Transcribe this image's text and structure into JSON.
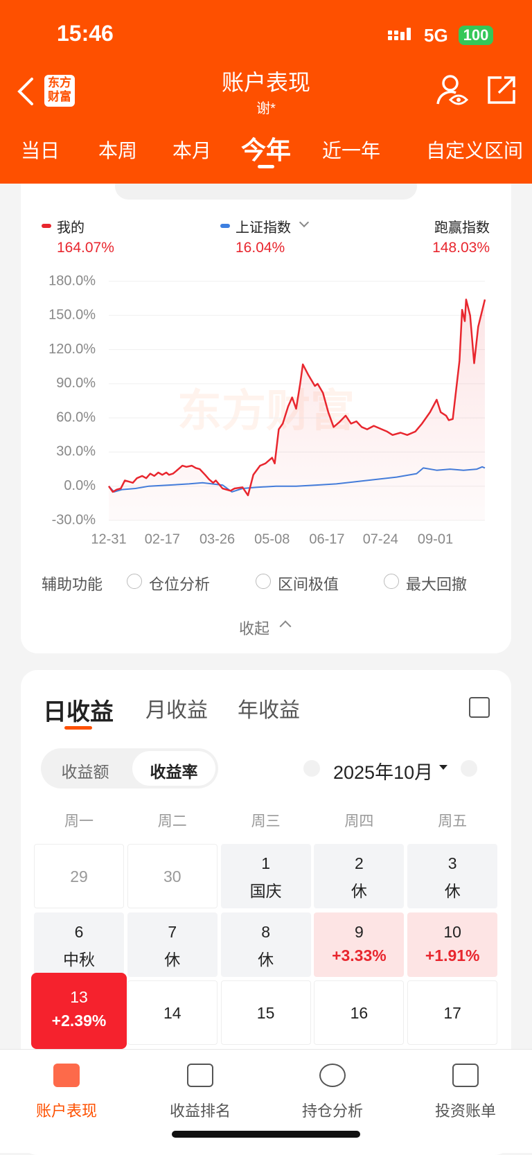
{
  "status_bar": {
    "time": "15:46",
    "network": "5G",
    "battery": "100"
  },
  "header": {
    "logo": [
      "东方",
      "财富"
    ],
    "title": "账户表现",
    "subtitle": "谢*"
  },
  "period_tabs": {
    "items": [
      "当日",
      "本周",
      "本月",
      "今年",
      "近一年",
      "自定义区间"
    ],
    "selected": 3
  },
  "chart_data": {
    "type": "line",
    "watermark": "东方财富",
    "series": [
      {
        "name": "我的",
        "color": "#e8262e",
        "total_label": "164.07%",
        "x": [
          0,
          3,
          6,
          9,
          12,
          15,
          18,
          21,
          25,
          28,
          31,
          34,
          37,
          40,
          43,
          45,
          48,
          52,
          55,
          58,
          62,
          65,
          68,
          72,
          75,
          78,
          80,
          85,
          91,
          94,
          100,
          104,
          108,
          113,
          117,
          122,
          124,
          127,
          130,
          134,
          137,
          140,
          143,
          145,
          149,
          154,
          156,
          160,
          164,
          168,
          172,
          177,
          181,
          185,
          189,
          193,
          198,
          204,
          208,
          212,
          218,
          223,
          229,
          234,
          240,
          245,
          248,
          252,
          254,
          257,
          262,
          264,
          266,
          267,
          270,
          273,
          276,
          281
        ],
        "values": [
          0,
          -5,
          -3,
          -2,
          5,
          4,
          3,
          7,
          9,
          7,
          11,
          9,
          12,
          10,
          12,
          10,
          11,
          15,
          18,
          17,
          18,
          16,
          15,
          10,
          6,
          3,
          5,
          -2,
          -4,
          -2,
          -1,
          -8,
          10,
          18,
          20,
          25,
          20,
          50,
          55,
          70,
          78,
          68,
          90,
          107,
          98,
          88,
          90,
          82,
          65,
          52,
          56,
          62,
          55,
          57,
          52,
          50,
          53,
          50,
          48,
          45,
          47,
          45,
          48,
          55,
          65,
          76,
          65,
          62,
          58,
          59,
          110,
          155,
          145,
          164,
          150,
          108,
          140,
          164
        ]
      },
      {
        "name": "上证指数",
        "color": "#3d7fe0",
        "total_label": "16.04%",
        "x": [
          0,
          4,
          10,
          20,
          30,
          45,
          60,
          70,
          85,
          92,
          100,
          110,
          125,
          140,
          155,
          170,
          185,
          200,
          215,
          230,
          235,
          245,
          255,
          265,
          275,
          279,
          281
        ],
        "values": [
          0,
          -5,
          -3,
          -2,
          0,
          1,
          2,
          3,
          1,
          -5,
          -2,
          -1,
          0,
          0,
          1,
          2,
          4,
          6,
          8,
          11,
          16,
          14,
          15,
          14,
          15,
          17,
          16
        ]
      }
    ],
    "excess": {
      "label": "跑赢指数",
      "value_label": "148.03%"
    },
    "xlim": [
      0,
      281
    ],
    "xticks": [
      {
        "value": 0,
        "label": "12-31"
      },
      {
        "value": 40,
        "label": "02-17"
      },
      {
        "value": 81,
        "label": "03-26"
      },
      {
        "value": 122,
        "label": "05-08"
      },
      {
        "value": 163,
        "label": "06-17"
      },
      {
        "value": 203,
        "label": "07-24"
      },
      {
        "value": 244,
        "label": "09-01"
      }
    ],
    "ylim": [
      -30,
      180
    ],
    "yticks": [
      {
        "value": -30,
        "label": "-30.0%"
      },
      {
        "value": 0,
        "label": "0.0%"
      },
      {
        "value": 30,
        "label": "30.0%"
      },
      {
        "value": 60,
        "label": "60.0%"
      },
      {
        "value": 90,
        "label": "90.0%"
      },
      {
        "value": 120,
        "label": "120.0%"
      },
      {
        "value": 150,
        "label": "150.0%"
      },
      {
        "value": 180,
        "label": "180.0%"
      }
    ],
    "grid": true
  },
  "aux": {
    "label": "辅助功能",
    "options": [
      "仓位分析",
      "区间极值",
      "最大回撤"
    ],
    "collapse": "收起"
  },
  "returns": {
    "tabs": [
      "日收益",
      "月收益",
      "年收益"
    ],
    "toggle": [
      "收益额",
      "收益率"
    ],
    "toggle_selected": 1,
    "month": "2025年10月",
    "weekdays": [
      "周一",
      "周二",
      "周三",
      "周四",
      "周五"
    ],
    "rows": [
      [
        {
          "day": 29,
          "style": "muted"
        },
        {
          "day": 30,
          "style": "muted"
        },
        {
          "day": 1,
          "note": "国庆",
          "style": "holiday"
        },
        {
          "day": 2,
          "note": "休",
          "style": "holiday"
        },
        {
          "day": 3,
          "note": "休",
          "style": "holiday"
        }
      ],
      [
        {
          "day": 6,
          "note": "中秋",
          "style": "holiday"
        },
        {
          "day": 7,
          "note": "休",
          "style": "holiday"
        },
        {
          "day": 8,
          "note": "休",
          "style": "holiday"
        },
        {
          "day": 9,
          "note": "+3.33%",
          "style": "up"
        },
        {
          "day": 10,
          "note": "+1.91%",
          "style": "up"
        }
      ],
      [
        {
          "day": 13,
          "note": "+2.39%",
          "style": "strong"
        },
        {
          "day": 14,
          "style": "normal"
        },
        {
          "day": 15,
          "style": "normal"
        },
        {
          "day": 16,
          "style": "normal"
        },
        {
          "day": 17,
          "style": "normal"
        }
      ]
    ]
  },
  "bottom_nav": {
    "items": [
      "账户表现",
      "收益排名",
      "持仓分析",
      "投资账单"
    ],
    "selected": 0
  }
}
